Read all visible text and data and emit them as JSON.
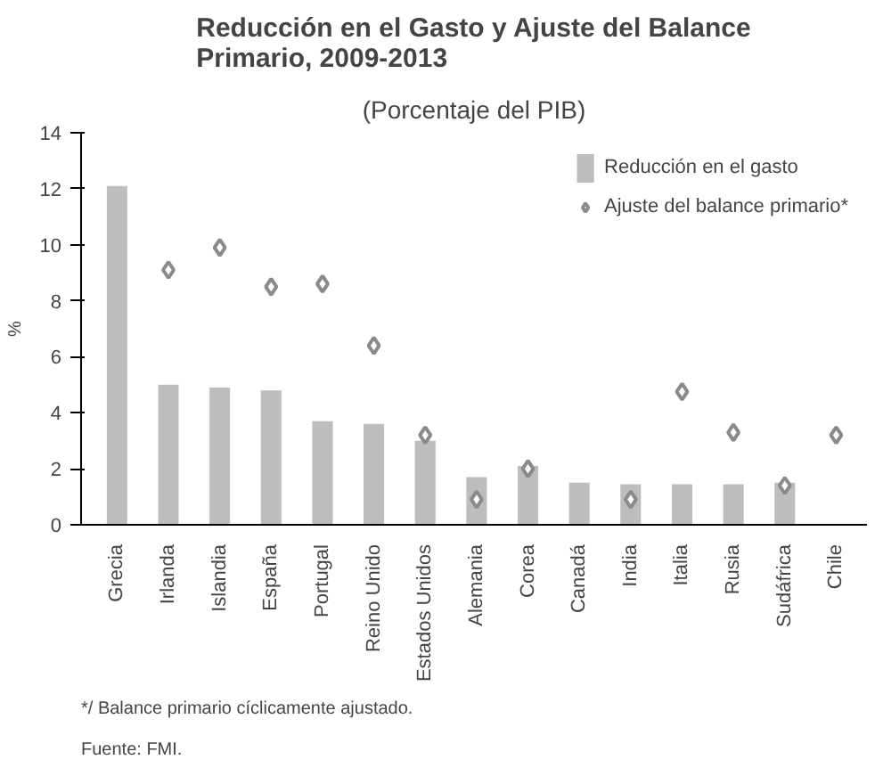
{
  "chart_data": {
    "type": "bar",
    "title": "Reducción en el Gasto y Ajuste del Balance Primario, 2009-2013",
    "subtitle": "(Porcentaje del PIB)",
    "ylabel": "%",
    "categories": [
      "Grecia",
      "Irlanda",
      "Islandia",
      "España",
      "Portugal",
      "Reino Unido",
      "Estados Unidos",
      "Alemania",
      "Corea",
      "Canadá",
      "India",
      "Italia",
      "Rusia",
      "Sudáfrica",
      "Chile"
    ],
    "series": [
      {
        "name": "Reducción en el gasto",
        "color": "#bdbdbd",
        "values": [
          12.1,
          5.0,
          4.9,
          4.8,
          3.7,
          3.6,
          3.0,
          1.7,
          2.1,
          1.5,
          1.45,
          1.45,
          1.45,
          1.5,
          null
        ]
      },
      {
        "name": "Ajuste del balance primario*",
        "type": "scatter",
        "marker": "diamond",
        "color": "#8a8a8a",
        "values": [
          null,
          9.1,
          9.9,
          8.5,
          8.6,
          6.4,
          3.2,
          0.9,
          2.0,
          null,
          0.9,
          4.75,
          3.3,
          1.4,
          3.2
        ]
      }
    ],
    "ylim": [
      0,
      14
    ],
    "yticks": [
      0,
      2,
      4,
      6,
      8,
      10,
      12,
      14
    ],
    "grid": false,
    "legend": "top right",
    "annotations": [
      "*/ Balance primario cíclicamente ajustado.",
      "Fuente: FMI."
    ]
  }
}
